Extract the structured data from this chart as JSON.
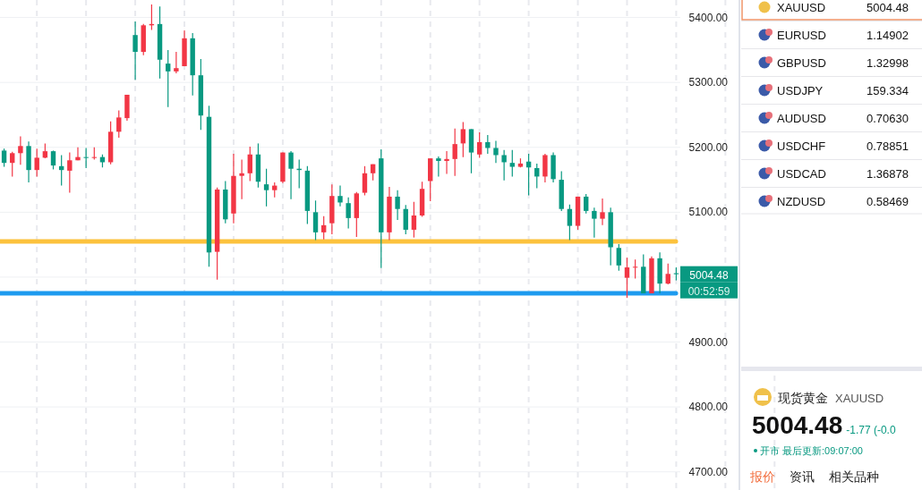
{
  "chart_data": [
    {
      "type": "candlestick",
      "categories": [
        null,
        null,
        null,
        null,
        null,
        null,
        null,
        null,
        null,
        null,
        null,
        null,
        null,
        null,
        null,
        null,
        null,
        null,
        null,
        null,
        null,
        null,
        null,
        null,
        null,
        null,
        null,
        null,
        null,
        null,
        null,
        null,
        null,
        null,
        null,
        null,
        null,
        null,
        null,
        null,
        null,
        null,
        null,
        null,
        null,
        null,
        null,
        null,
        null,
        null,
        null,
        null,
        null,
        null,
        null,
        null,
        null,
        null,
        null,
        null,
        null,
        null,
        null,
        null,
        null,
        null,
        null,
        null,
        null,
        null,
        null,
        null,
        null,
        null,
        null,
        null,
        null,
        null,
        null,
        null,
        null,
        null,
        null
      ],
      "ohlc": [
        [
          5195,
          5198,
          5170,
          5176
        ],
        [
          5176,
          5193,
          5155,
          5191
        ],
        [
          5191,
          5217,
          5173,
          5202
        ],
        [
          5202,
          5209,
          5146,
          5165
        ],
        [
          5165,
          5198,
          5155,
          5184
        ],
        [
          5184,
          5206,
          5183,
          5194
        ],
        [
          5194,
          5195,
          5166,
          5172
        ],
        [
          5171,
          5188,
          5141,
          5165
        ],
        [
          5164,
          5192,
          5130,
          5180
        ],
        [
          5180,
          5200,
          5180,
          5185
        ],
        [
          5185,
          5199,
          5168,
          5184
        ],
        [
          5184,
          5200,
          5181,
          5185
        ],
        [
          5185,
          5189,
          5169,
          5177
        ],
        [
          5177,
          5240,
          5174,
          5224
        ],
        [
          5224,
          5257,
          5215,
          5246
        ],
        [
          5245,
          5281,
          5241,
          5281
        ],
        [
          5373,
          5394,
          5304,
          5347
        ],
        [
          5347,
          5390,
          5342,
          5388
        ],
        [
          5388,
          5420,
          5381,
          5390
        ],
        [
          5390,
          5417,
          5306,
          5335
        ],
        [
          5329,
          5350,
          5262,
          5317
        ],
        [
          5317,
          5347,
          5314,
          5322
        ],
        [
          5325,
          5380,
          5325,
          5368
        ],
        [
          5368,
          5376,
          5280,
          5311
        ],
        [
          5311,
          5336,
          5227,
          5249
        ],
        [
          5247,
          5264,
          5016,
          5038
        ],
        [
          5039,
          5138,
          4996,
          5135
        ],
        [
          5135,
          5148,
          5083,
          5089
        ],
        [
          5098,
          5190,
          5083,
          5156
        ],
        [
          5156,
          5181,
          5120,
          5160
        ],
        [
          5160,
          5201,
          5148,
          5189
        ],
        [
          5189,
          5206,
          5138,
          5147
        ],
        [
          5143,
          5167,
          5109,
          5134
        ],
        [
          5134,
          5146,
          5123,
          5141
        ],
        [
          5147,
          5192,
          5145,
          5192
        ],
        [
          5192,
          5194,
          5120,
          5167
        ],
        [
          5167,
          5181,
          5137,
          5165
        ],
        [
          5164,
          5171,
          5082,
          5102
        ],
        [
          5100,
          5118,
          5057,
          5069
        ],
        [
          5069,
          5094,
          5058,
          5080
        ],
        [
          5083,
          5143,
          5066,
          5125
        ],
        [
          5125,
          5141,
          5109,
          5115
        ],
        [
          5114,
          5123,
          5075,
          5091
        ],
        [
          5091,
          5131,
          5062,
          5129
        ],
        [
          5130,
          5171,
          5126,
          5160
        ],
        [
          5160,
          5174,
          5149,
          5174
        ],
        [
          5183,
          5197,
          5014,
          5069
        ],
        [
          5069,
          5139,
          5057,
          5124
        ],
        [
          5124,
          5134,
          5088,
          5105
        ],
        [
          5105,
          5111,
          5066,
          5073
        ],
        [
          5073,
          5116,
          5061,
          5095
        ],
        [
          5095,
          5147,
          5093,
          5136
        ],
        [
          5148,
          5183,
          5117,
          5183
        ],
        [
          5183,
          5186,
          5155,
          5179
        ],
        [
          5179,
          5194,
          5159,
          5182
        ],
        [
          5182,
          5229,
          5156,
          5205
        ],
        [
          5206,
          5239,
          5185,
          5228
        ],
        [
          5228,
          5228,
          5160,
          5192
        ],
        [
          5189,
          5223,
          5184,
          5208
        ],
        [
          5208,
          5219,
          5190,
          5199
        ],
        [
          5199,
          5210,
          5176,
          5188
        ],
        [
          5188,
          5196,
          5149,
          5177
        ],
        [
          5176,
          5196,
          5155,
          5170
        ],
        [
          5170,
          5183,
          5169,
          5175
        ],
        [
          5178,
          5190,
          5126,
          5169
        ],
        [
          5168,
          5175,
          5137,
          5155
        ],
        [
          5155,
          5190,
          5146,
          5188
        ],
        [
          5188,
          5192,
          5146,
          5151
        ],
        [
          5150,
          5163,
          5102,
          5105
        ],
        [
          5105,
          5112,
          5057,
          5079
        ],
        [
          5079,
          5124,
          5073,
          5124
        ],
        [
          5124,
          5128,
          5098,
          5102
        ],
        [
          5102,
          5107,
          5061,
          5090
        ],
        [
          5090,
          5121,
          5080,
          5100
        ],
        [
          5100,
          5107,
          5018,
          5046
        ],
        [
          5045,
          5051,
          5010,
          5018
        ],
        [
          4999,
          5030,
          4968,
          5015
        ],
        [
          5015,
          5027,
          4998,
          5016
        ],
        [
          5016,
          5035,
          4975,
          4975
        ],
        [
          4975,
          5032,
          4975,
          5029
        ],
        [
          5029,
          5038,
          4975,
          4990
        ],
        [
          4990,
          5021,
          4989,
          5005
        ],
        [
          5006,
          5015,
          4995,
          5004.48
        ]
      ],
      "colors": [
        "#089981",
        "#f23645",
        "#f23645",
        "#089981",
        "#f23645",
        "#f23645",
        "#089981",
        "#089981",
        "#f23645",
        "#f23645",
        "#089981",
        "#f23645",
        "#089981",
        "#f23645",
        "#f23645",
        "#f23645",
        "#089981",
        "#f23645",
        "#f23645",
        "#089981",
        "#089981",
        "#f23645",
        "#f23645",
        "#089981",
        "#089981",
        "#089981",
        "#f23645",
        "#089981",
        "#f23645",
        "#f23645",
        "#f23645",
        "#089981",
        "#089981",
        "#f23645",
        "#f23645",
        "#089981",
        "#089981",
        "#089981",
        "#089981",
        "#f23645",
        "#f23645",
        "#089981",
        "#089981",
        "#f23645",
        "#f23645",
        "#f23645",
        "#089981",
        "#f23645",
        "#089981",
        "#089981",
        "#f23645",
        "#f23645",
        "#f23645",
        "#089981",
        "#f23645",
        "#f23645",
        "#f23645",
        "#089981",
        "#f23645",
        "#089981",
        "#089981",
        "#089981",
        "#089981",
        "#f23645",
        "#089981",
        "#089981",
        "#f23645",
        "#089981",
        "#089981",
        "#089981",
        "#f23645",
        "#089981",
        "#089981",
        "#f23645",
        "#089981",
        "#089981",
        "#f23645",
        "#f23645",
        "#089981",
        "#f23645",
        "#089981",
        "#f23645",
        "#089981"
      ],
      "ylim": [
        4672,
        5427
      ],
      "yticks": [
        {
          "value": 4700,
          "label": "4700.00"
        },
        {
          "value": 4800,
          "label": "4800.00"
        },
        {
          "value": 4900,
          "label": "4900.00"
        },
        {
          "value": 5000,
          "label": null
        },
        {
          "value": 5100,
          "label": "5100.00"
        },
        {
          "value": 5200,
          "label": "5200.00"
        },
        {
          "value": 5300,
          "label": "5300.00"
        },
        {
          "value": 5400,
          "label": "5400.00"
        }
      ],
      "grid": true,
      "ref_lines": [
        {
          "axis": "y",
          "value": 5055,
          "color": "#fcc23d"
        },
        {
          "axis": "y",
          "value": 4975,
          "color": "#1e9bef"
        }
      ],
      "annotations": [
        "5004.48",
        "00:52:59"
      ]
    },
    {
      "type": "other",
      "annotations": [
        "XAUUSD",
        "5004.48",
        "EURUSD",
        "1.14902",
        "GBPUSD",
        "1.32998",
        "USDJPY",
        "159.334",
        "AUDUSD",
        "0.70630",
        "USDCHF",
        "0.78851",
        "USDCAD",
        "1.36878",
        "NZDUSD",
        "0.58469"
      ]
    },
    {
      "type": "other",
      "annotations": [
        "现货黄金",
        "XAUUSD",
        "5004.48",
        "-1.77 (-0.0",
        "开市 最后更新:09:07:00",
        "报价",
        "资讯",
        "相关品种"
      ]
    }
  ]
}
